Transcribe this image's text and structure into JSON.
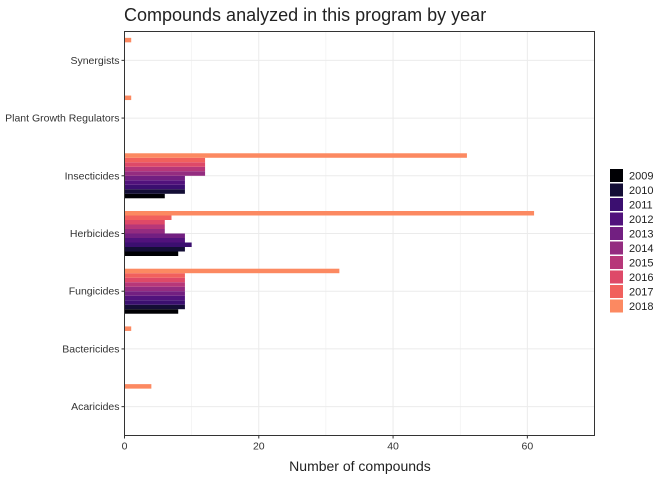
{
  "chart_data": {
    "type": "bar",
    "orientation": "horizontal",
    "title": "Compounds analyzed in this program by year",
    "xlabel": "Number of compounds",
    "ylabel": "",
    "xlim": [
      0,
      70
    ],
    "xticks": [
      0,
      20,
      40,
      60
    ],
    "grid": true,
    "legend_position": "right",
    "categories": [
      "Synergists",
      "Plant Growth Regulators",
      "Insecticides",
      "Herbicides",
      "Fungicides",
      "Bactericides",
      "Acaricides"
    ],
    "series": [
      {
        "name": "2009",
        "color": "#000004",
        "values": [
          null,
          null,
          6,
          8,
          8,
          null,
          null
        ]
      },
      {
        "name": "2010",
        "color": "#140e36",
        "values": [
          null,
          null,
          9,
          9,
          9,
          null,
          null
        ]
      },
      {
        "name": "2011",
        "color": "#3b0f70",
        "values": [
          null,
          null,
          9,
          10,
          9,
          null,
          null
        ]
      },
      {
        "name": "2012",
        "color": "#51127c",
        "values": [
          null,
          null,
          9,
          9,
          9,
          null,
          null
        ]
      },
      {
        "name": "2013",
        "color": "#721f81",
        "values": [
          null,
          null,
          9,
          9,
          9,
          null,
          null
        ]
      },
      {
        "name": "2014",
        "color": "#942c80",
        "values": [
          null,
          null,
          12,
          6,
          9,
          null,
          null
        ]
      },
      {
        "name": "2015",
        "color": "#b73779",
        "values": [
          null,
          null,
          12,
          6,
          9,
          null,
          null
        ]
      },
      {
        "name": "2016",
        "color": "#de4968",
        "values": [
          null,
          null,
          12,
          6,
          9,
          null,
          null
        ]
      },
      {
        "name": "2017",
        "color": "#f1605d",
        "values": [
          null,
          null,
          12,
          7,
          9,
          null,
          null
        ]
      },
      {
        "name": "2018",
        "color": "#fc8961",
        "values": [
          1,
          1,
          51,
          61,
          32,
          1,
          4
        ]
      }
    ]
  }
}
